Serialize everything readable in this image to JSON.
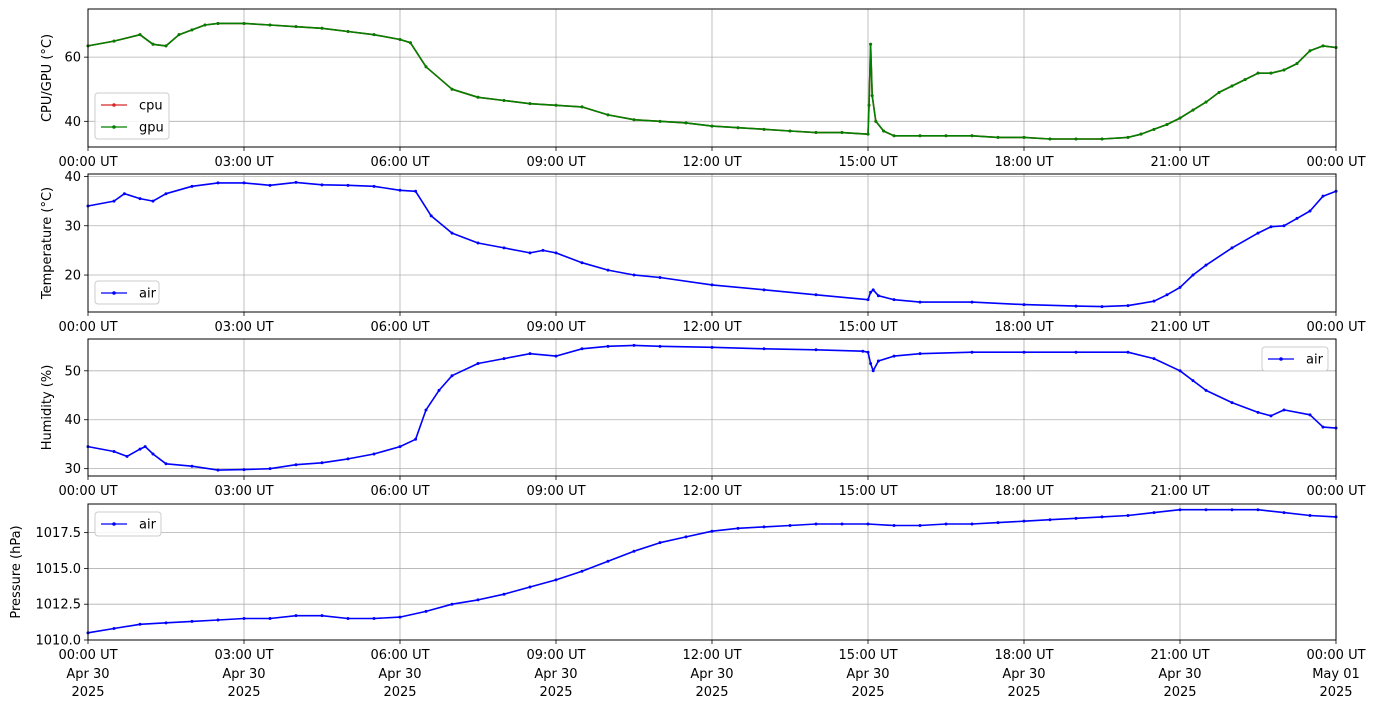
{
  "figure": {
    "x_ticks": [
      "00:00 UT",
      "03:00 UT",
      "06:00 UT",
      "09:00 UT",
      "12:00 UT",
      "15:00 UT",
      "18:00 UT",
      "21:00 UT",
      "00:00 UT"
    ],
    "bottom_dates": [
      "Apr 30\n2025",
      "Apr 30\n2025",
      "Apr 30\n2025",
      "Apr 30\n2025",
      "Apr 30\n2025",
      "Apr 30\n2025",
      "Apr 30\n2025",
      "Apr 30\n2025",
      "May 01\n2025"
    ]
  },
  "chart_data": [
    {
      "type": "line",
      "ylabel": "CPU/GPU (°C)",
      "xlim": [
        "2025-04-30 00:00",
        "2025-05-01 00:00"
      ],
      "ylim": [
        32,
        75
      ],
      "yticks": [
        40,
        60
      ],
      "grid": true,
      "legend": "lower-left",
      "series": [
        {
          "name": "cpu",
          "color": "#d62728",
          "x": [
            0,
            0.5,
            1,
            1.25,
            1.5,
            1.75,
            2,
            2.25,
            2.5,
            3,
            3.5,
            4,
            4.5,
            5,
            5.5,
            6,
            6.2,
            6.5,
            7,
            7.5,
            8,
            8.5,
            9,
            9.5,
            10,
            10.5,
            11,
            11.5,
            12,
            12.5,
            13,
            13.5,
            14,
            14.5,
            15,
            15.02,
            15.05,
            15.08,
            15.15,
            15.3,
            15.5,
            16,
            16.5,
            17,
            17.5,
            18,
            18.5,
            19,
            19.5,
            20,
            20.25,
            20.5,
            20.75,
            21,
            21.25,
            21.5,
            21.75,
            22,
            22.25,
            22.5,
            22.75,
            23,
            23.25,
            23.5,
            23.75,
            24
          ],
          "y": [
            63.5,
            65,
            67,
            64,
            63.5,
            67,
            68.5,
            70,
            70.5,
            70.5,
            70,
            69.5,
            69,
            68,
            67,
            65.5,
            64.5,
            57,
            50,
            47.5,
            46.5,
            45.5,
            45,
            44.5,
            42,
            40.5,
            40,
            39.5,
            38.5,
            38,
            37.5,
            37,
            36.5,
            36.5,
            36,
            45,
            64,
            48,
            40,
            37,
            35.5,
            35.5,
            35.5,
            35.5,
            35,
            35,
            34.5,
            34.5,
            34.5,
            35,
            36,
            37.5,
            39,
            41,
            43.5,
            46,
            49,
            51,
            53,
            55,
            55,
            56,
            58,
            62,
            63.5,
            63
          ]
        },
        {
          "name": "gpu",
          "color": "#008000",
          "x": [
            0,
            0.5,
            1,
            1.25,
            1.5,
            1.75,
            2,
            2.25,
            2.5,
            3,
            3.5,
            4,
            4.5,
            5,
            5.5,
            6,
            6.2,
            6.5,
            7,
            7.5,
            8,
            8.5,
            9,
            9.5,
            10,
            10.5,
            11,
            11.5,
            12,
            12.5,
            13,
            13.5,
            14,
            14.5,
            15,
            15.02,
            15.05,
            15.08,
            15.15,
            15.3,
            15.5,
            16,
            16.5,
            17,
            17.5,
            18,
            18.5,
            19,
            19.5,
            20,
            20.25,
            20.5,
            20.75,
            21,
            21.25,
            21.5,
            21.75,
            22,
            22.25,
            22.5,
            22.75,
            23,
            23.25,
            23.5,
            23.75,
            24
          ],
          "y": [
            63.5,
            65,
            67,
            64,
            63.5,
            67,
            68.5,
            70,
            70.5,
            70.5,
            70,
            69.5,
            69,
            68,
            67,
            65.5,
            64.5,
            57,
            50,
            47.5,
            46.5,
            45.5,
            45,
            44.5,
            42,
            40.5,
            40,
            39.5,
            38.5,
            38,
            37.5,
            37,
            36.5,
            36.5,
            36,
            45,
            64,
            48,
            40,
            37,
            35.5,
            35.5,
            35.5,
            35.5,
            35,
            35,
            34.5,
            34.5,
            34.5,
            35,
            36,
            37.5,
            39,
            41,
            43.5,
            46,
            49,
            51,
            53,
            55,
            55,
            56,
            58,
            62,
            63.5,
            63
          ]
        }
      ]
    },
    {
      "type": "line",
      "ylabel": "Temperature (°C)",
      "xlim": [
        "2025-04-30 00:00",
        "2025-05-01 00:00"
      ],
      "ylim": [
        12.5,
        40.5
      ],
      "yticks": [
        20,
        30,
        40
      ],
      "grid": true,
      "legend": "lower-left",
      "series": [
        {
          "name": "air",
          "color": "#0000ff",
          "x": [
            0,
            0.5,
            0.7,
            1,
            1.25,
            1.5,
            2,
            2.5,
            3,
            3.5,
            4,
            4.5,
            5,
            5.5,
            6,
            6.3,
            6.6,
            7,
            7.5,
            8,
            8.5,
            8.75,
            9,
            9.5,
            10,
            10.5,
            11,
            12,
            13,
            14,
            15,
            15.05,
            15.1,
            15.2,
            15.5,
            16,
            17,
            18,
            19,
            19.5,
            20,
            20.5,
            20.75,
            21,
            21.25,
            21.5,
            22,
            22.5,
            22.75,
            23,
            23.25,
            23.5,
            23.75,
            24
          ],
          "y": [
            34,
            35,
            36.5,
            35.5,
            35,
            36.5,
            38,
            38.7,
            38.7,
            38.2,
            38.8,
            38.3,
            38.2,
            38,
            37.2,
            37,
            32,
            28.5,
            26.5,
            25.5,
            24.5,
            25,
            24.5,
            22.5,
            21,
            20,
            19.5,
            18,
            17,
            16,
            15,
            16.5,
            17,
            15.8,
            15,
            14.5,
            14.5,
            14,
            13.7,
            13.6,
            13.8,
            14.7,
            16,
            17.5,
            20,
            22,
            25.5,
            28.5,
            29.8,
            30,
            31.5,
            33,
            36,
            37
          ]
        }
      ]
    },
    {
      "type": "line",
      "ylabel": "Humidity (%)",
      "xlim": [
        "2025-04-30 00:00",
        "2025-05-01 00:00"
      ],
      "ylim": [
        28.5,
        56.5
      ],
      "yticks": [
        30,
        40,
        50
      ],
      "grid": true,
      "legend": "upper-right",
      "series": [
        {
          "name": "air",
          "color": "#0000ff",
          "x": [
            0,
            0.5,
            0.75,
            1,
            1.1,
            1.25,
            1.5,
            2,
            2.5,
            3,
            3.5,
            4,
            4.5,
            5,
            5.5,
            6,
            6.3,
            6.5,
            6.75,
            7,
            7.5,
            8,
            8.5,
            9,
            9.5,
            10,
            10.5,
            11,
            12,
            13,
            14,
            14.9,
            15,
            15.05,
            15.1,
            15.2,
            15.5,
            16,
            17,
            18,
            19,
            20,
            20.5,
            21,
            21.25,
            21.5,
            22,
            22.5,
            22.75,
            23,
            23.5,
            23.75,
            24
          ],
          "y": [
            34.5,
            33.5,
            32.5,
            34,
            34.5,
            33,
            31,
            30.5,
            29.7,
            29.8,
            30,
            30.8,
            31.2,
            32,
            33,
            34.5,
            36,
            42,
            46,
            49,
            51.5,
            52.5,
            53.5,
            53,
            54.5,
            55,
            55.2,
            55,
            54.8,
            54.5,
            54.3,
            54,
            53.8,
            51.5,
            50,
            52,
            53,
            53.5,
            53.8,
            53.8,
            53.8,
            53.8,
            52.5,
            50,
            48,
            46,
            43.5,
            41.5,
            40.8,
            42,
            41,
            38.5,
            38.3
          ]
        }
      ]
    },
    {
      "type": "line",
      "ylabel": "Pressure (hPa)",
      "xlim": [
        "2025-04-30 00:00",
        "2025-05-01 00:00"
      ],
      "ylim": [
        1010,
        1019.5
      ],
      "yticks": [
        "1010.0",
        "1012.5",
        "1015.0",
        "1017.5"
      ],
      "grid": true,
      "legend": "upper-left",
      "series": [
        {
          "name": "air",
          "color": "#0000ff",
          "x": [
            0,
            0.5,
            1,
            1.5,
            2,
            2.5,
            3,
            3.5,
            4,
            4.5,
            5,
            5.5,
            6,
            6.5,
            7,
            7.5,
            8,
            8.5,
            9,
            9.5,
            10,
            10.5,
            11,
            11.5,
            12,
            12.5,
            13,
            13.5,
            14,
            14.5,
            15,
            15.5,
            16,
            16.5,
            17,
            17.5,
            18,
            18.5,
            19,
            19.5,
            20,
            20.5,
            21,
            21.5,
            22,
            22.5,
            23,
            23.5,
            24
          ],
          "y": [
            1010.5,
            1010.8,
            1011.1,
            1011.2,
            1011.3,
            1011.4,
            1011.5,
            1011.5,
            1011.7,
            1011.7,
            1011.5,
            1011.5,
            1011.6,
            1012,
            1012.5,
            1012.8,
            1013.2,
            1013.7,
            1014.2,
            1014.8,
            1015.5,
            1016.2,
            1016.8,
            1017.2,
            1017.6,
            1017.8,
            1017.9,
            1018,
            1018.1,
            1018.1,
            1018.1,
            1018,
            1018,
            1018.1,
            1018.1,
            1018.2,
            1018.3,
            1018.4,
            1018.5,
            1018.6,
            1018.7,
            1018.9,
            1019.1,
            1019.1,
            1019.1,
            1019.1,
            1018.9,
            1018.7,
            1018.6
          ]
        }
      ]
    }
  ]
}
